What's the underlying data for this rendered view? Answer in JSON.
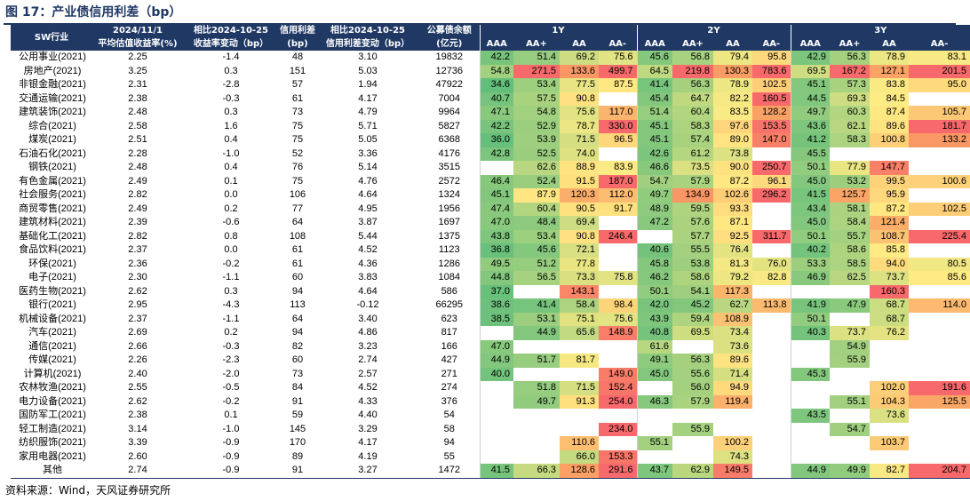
{
  "title": "图 17：产业债信用利差（bp）",
  "source": "资料来源：Wind，天风证券研究所",
  "headers": {
    "industry": "SW行业",
    "c1a": "2024/11/1",
    "c1b": "平均估值收益率(%)",
    "c2a": "相比2024-10-25",
    "c2b": "收益率变动（bp）",
    "c3a": "信用利差",
    "c3b": "(bp)",
    "c4a": "相比2024-10-25",
    "c4b": "信用利差变动（bp）",
    "c5a": "公募债余额",
    "c5b": "(亿元)",
    "groups": [
      "1Y",
      "2Y",
      "3Y"
    ],
    "ratings": [
      "AAA",
      "AA+",
      "AA",
      "AA-"
    ]
  },
  "rows": [
    [
      "公用事业(2021)",
      "2.25",
      "-1.4",
      "48",
      "3.10",
      "19832",
      "42.2",
      "51.4",
      "69.2",
      "75.6",
      "45.6",
      "56.8",
      "79.4",
      "95.8",
      "42.9",
      "56.3",
      "78.9",
      "83.1"
    ],
    [
      "房地产(2021)",
      "3.25",
      "0.3",
      "151",
      "5.03",
      "12736",
      "54.8",
      "271.5",
      "133.6",
      "499.7",
      "64.5",
      "219.8",
      "130.3",
      "783.6",
      "69.5",
      "167.2",
      "127.1",
      "201.5"
    ],
    [
      "非银金融(2021)",
      "2.31",
      "-2.8",
      "57",
      "1.94",
      "47922",
      "34.6",
      "53.4",
      "77.5",
      "87.5",
      "41.4",
      "56.3",
      "78.9",
      "102.5",
      "45.1",
      "57.3",
      "83.8",
      "95.0"
    ],
    [
      "交通运输(2021)",
      "2.38",
      "-0.3",
      "61",
      "4.17",
      "7004",
      "40.7",
      "57.5",
      "90.8",
      "",
      "45.4",
      "64.7",
      "82.2",
      "160.5",
      "44.5",
      "69.3",
      "84.5",
      ""
    ],
    [
      "建筑装饰(2021)",
      "2.48",
      "0.3",
      "73",
      "4.79",
      "9964",
      "47.1",
      "54.8",
      "75.6",
      "117.0",
      "51.4",
      "60.4",
      "83.5",
      "128.2",
      "49.7",
      "60.3",
      "87.4",
      "105.7"
    ],
    [
      "综合(2021)",
      "2.58",
      "1.6",
      "75",
      "5.71",
      "5827",
      "42.2",
      "52.9",
      "78.7",
      "330.0",
      "45.1",
      "58.3",
      "97.6",
      "153.5",
      "43.6",
      "62.1",
      "89.6",
      "181.7"
    ],
    [
      "煤炭(2021)",
      "2.51",
      "0.4",
      "75",
      "5.05",
      "6368",
      "36.0",
      "53.9",
      "71.5",
      "96.5",
      "45.1",
      "57.4",
      "89.0",
      "147.0",
      "41.2",
      "58.3",
      "100.8",
      "133.2"
    ],
    [
      "石油石化(2021)",
      "2.28",
      "-1.0",
      "52",
      "3.36",
      "4176",
      "42.8",
      "52.5",
      "74.0",
      "",
      "42.6",
      "61.2",
      "73.8",
      "",
      "45.5",
      "",
      "",
      ""
    ],
    [
      "钢铁(2021)",
      "2.48",
      "0.4",
      "76",
      "5.14",
      "3515",
      "",
      "62.6",
      "88.9",
      "83.9",
      "46.6",
      "73.5",
      "90.0",
      "250.7",
      "50.1",
      "77.9",
      "147.7",
      ""
    ],
    [
      "有色金属(2021)",
      "2.49",
      "0.1",
      "75",
      "4.76",
      "2572",
      "46.4",
      "52.4",
      "91.5",
      "187.0",
      "54.7",
      "57.9",
      "87.2",
      "96.1",
      "45.0",
      "53.2",
      "99.5",
      "100.6"
    ],
    [
      "社会服务(2021)",
      "2.82",
      "0.0",
      "106",
      "4.64",
      "1324",
      "45.1",
      "87.9",
      "120.3",
      "112.0",
      "49.7",
      "134.9",
      "102.6",
      "296.2",
      "41.5",
      "125.7",
      "95.9",
      ""
    ],
    [
      "商贸零售(2021)",
      "2.49",
      "0.2",
      "77",
      "4.95",
      "1956",
      "47.4",
      "60.4",
      "90.5",
      "91.7",
      "48.9",
      "59.5",
      "93.3",
      "",
      "43.4",
      "58.1",
      "87.2",
      "102.5"
    ],
    [
      "建筑材料(2021)",
      "2.39",
      "-0.6",
      "64",
      "3.87",
      "1697",
      "47.0",
      "48.4",
      "69.4",
      "",
      "47.2",
      "57.6",
      "87.1",
      "",
      "45.0",
      "58.4",
      "121.4",
      ""
    ],
    [
      "基础化工(2021)",
      "2.82",
      "0.8",
      "108",
      "5.44",
      "1375",
      "43.8",
      "53.4",
      "90.8",
      "246.4",
      "",
      "57.7",
      "92.5",
      "311.7",
      "50.1",
      "55.7",
      "108.7",
      "225.4"
    ],
    [
      "食品饮料(2021)",
      "2.37",
      "0.0",
      "61",
      "4.52",
      "1123",
      "36.8",
      "45.6",
      "72.1",
      "",
      "40.6",
      "55.5",
      "76.4",
      "",
      "40.2",
      "58.6",
      "85.8",
      ""
    ],
    [
      "环保(2021)",
      "2.36",
      "-0.2",
      "61",
      "4.36",
      "1286",
      "49.5",
      "51.2",
      "77.8",
      "",
      "45.8",
      "53.8",
      "81.3",
      "76.0",
      "53.3",
      "58.5",
      "94.0",
      "80.5"
    ],
    [
      "电子(2021)",
      "2.30",
      "-1.1",
      "60",
      "3.83",
      "1084",
      "44.8",
      "56.5",
      "73.3",
      "75.8",
      "46.2",
      "58.6",
      "79.2",
      "82.8",
      "46.9",
      "62.5",
      "73.7",
      "85.6"
    ],
    [
      "医药生物(2021)",
      "2.62",
      "0.3",
      "94",
      "4.64",
      "586",
      "37.0",
      "",
      "143.1",
      "",
      "50.1",
      "54.1",
      "117.3",
      "",
      "",
      "",
      "160.3",
      ""
    ],
    [
      "银行(2021)",
      "2.95",
      "-4.3",
      "113",
      "-0.12",
      "66295",
      "38.6",
      "41.4",
      "58.4",
      "98.4",
      "42.0",
      "45.2",
      "62.7",
      "113.8",
      "41.9",
      "47.9",
      "68.7",
      "114.0"
    ],
    [
      "机械设备(2021)",
      "2.37",
      "-1.1",
      "64",
      "3.40",
      "623",
      "38.5",
      "53.1",
      "75.1",
      "75.6",
      "43.9",
      "59.4",
      "108.9",
      "",
      "50.1",
      "",
      "68.7",
      ""
    ],
    [
      "汽车(2021)",
      "2.69",
      "0.2",
      "94",
      "4.86",
      "817",
      "",
      "44.9",
      "65.6",
      "148.9",
      "40.8",
      "69.5",
      "73.4",
      "",
      "40.3",
      "73.7",
      "76.2",
      ""
    ],
    [
      "通信(2021)",
      "2.66",
      "-0.3",
      "82",
      "3.23",
      "166",
      "47.0",
      "",
      "",
      "",
      "61.6",
      "",
      "73.6",
      "",
      "",
      "54.9",
      "",
      ""
    ],
    [
      "传媒(2021)",
      "2.26",
      "-2.3",
      "60",
      "2.74",
      "427",
      "44.9",
      "51.7",
      "81.7",
      "",
      "49.1",
      "56.3",
      "89.6",
      "",
      "",
      "55.9",
      "",
      ""
    ],
    [
      "计算机(2021)",
      "2.40",
      "-2.0",
      "73",
      "2.57",
      "271",
      "40.0",
      "",
      "",
      "149.0",
      "45.0",
      "55.6",
      "71.4",
      "",
      "45.3",
      "",
      "",
      ""
    ],
    [
      "农林牧渔(2021)",
      "2.55",
      "-0.5",
      "84",
      "4.52",
      "274",
      "",
      "51.8",
      "71.5",
      "152.4",
      "",
      "56.0",
      "94.9",
      "",
      "",
      "",
      "102.0",
      "191.6"
    ],
    [
      "电力设备(2021)",
      "2.62",
      "-0.2",
      "91",
      "4.33",
      "376",
      "",
      "49.7",
      "91.3",
      "254.0",
      "46.3",
      "57.9",
      "119.4",
      "",
      "",
      "55.1",
      "104.3",
      "125.5"
    ],
    [
      "国防军工(2021)",
      "2.38",
      "0.1",
      "59",
      "4.40",
      "54",
      "",
      "",
      "",
      "",
      "",
      "",
      "",
      "",
      "43.5",
      "",
      "73.6",
      ""
    ],
    [
      "轻工制造(2021)",
      "3.14",
      "-1.0",
      "145",
      "3.29",
      "58",
      "",
      "",
      "",
      "234.0",
      "",
      "55.9",
      "",
      "",
      "",
      "54.7",
      "",
      ""
    ],
    [
      "纺织服饰(2021)",
      "3.39",
      "-0.9",
      "170",
      "4.17",
      "94",
      "",
      "",
      "110.6",
      "",
      "55.1",
      "",
      "100.2",
      "",
      "",
      "",
      "103.7",
      ""
    ],
    [
      "家用电器(2021)",
      "2.60",
      "-0.9",
      "89",
      "4.19",
      "55",
      "",
      "",
      "66.0",
      "153.3",
      "",
      "",
      "74.3",
      "",
      "",
      "",
      "",
      ""
    ],
    [
      "其他",
      "2.74",
      "-0.9",
      "91",
      "3.27",
      "1472",
      "41.5",
      "66.3",
      "128.6",
      "291.6",
      "43.7",
      "62.9",
      "149.5",
      "",
      "44.9",
      "49.9",
      "82.7",
      "204.7"
    ]
  ]
}
